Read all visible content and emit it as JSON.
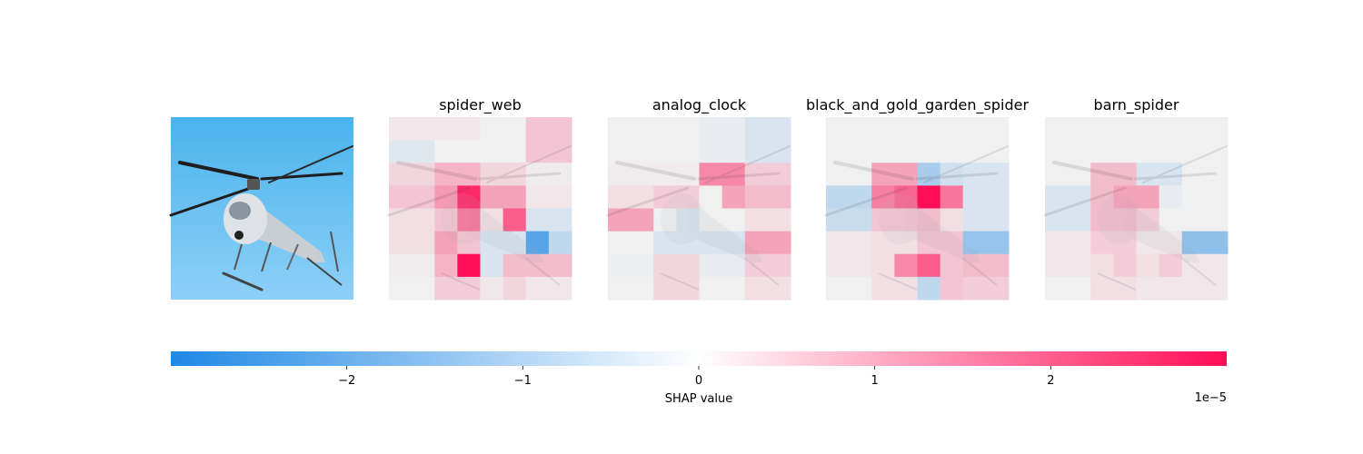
{
  "chart_data": {
    "type": "heatmap",
    "original_image": {
      "subject": "helicopter photo",
      "sky_colors": [
        "#4ab3ec",
        "#8dd0f7"
      ]
    },
    "grid": {
      "rows": 8,
      "cols": 8,
      "segment_labels_printed": false
    },
    "panels": [
      {
        "title": "spider_web",
        "values": [
          [
            0.1,
            0.1,
            0.1,
            0.1,
            0.0,
            0.0,
            0.5,
            0.5
          ],
          [
            -0.2,
            -0.2,
            0.0,
            0.0,
            0.0,
            0.0,
            0.5,
            0.5
          ],
          [
            0.3,
            0.3,
            0.7,
            0.7,
            0.3,
            0.3,
            0.05,
            0.05
          ],
          [
            0.5,
            0.5,
            1.0,
            2.3,
            0.9,
            0.9,
            0.1,
            0.1
          ],
          [
            0.2,
            0.2,
            0.5,
            1.4,
            0.2,
            1.7,
            -0.3,
            -0.3
          ],
          [
            0.2,
            0.2,
            0.9,
            0.5,
            -0.3,
            -0.3,
            -1.9,
            -0.6
          ],
          [
            0.05,
            0.05,
            0.7,
            2.6,
            -0.3,
            0.6,
            0.6,
            0.6
          ],
          [
            0.0,
            0.0,
            0.4,
            0.4,
            0.1,
            0.3,
            0.1,
            0.1
          ]
        ]
      },
      {
        "title": "analog_clock",
        "values": [
          [
            0.0,
            0.0,
            0.0,
            0.0,
            -0.1,
            -0.1,
            -0.3,
            -0.3
          ],
          [
            0.0,
            0.0,
            0.0,
            0.0,
            -0.1,
            -0.1,
            -0.3,
            -0.3
          ],
          [
            0.05,
            0.05,
            0.05,
            0.05,
            1.2,
            1.2,
            0.4,
            0.4
          ],
          [
            0.2,
            0.2,
            0.4,
            0.4,
            0.0,
            0.9,
            0.6,
            0.6
          ],
          [
            0.9,
            0.9,
            0.0,
            -0.3,
            0.0,
            0.0,
            0.2,
            0.2
          ],
          [
            0.0,
            0.0,
            -0.3,
            -0.3,
            -0.3,
            -0.3,
            0.9,
            0.9
          ],
          [
            -0.05,
            -0.05,
            0.3,
            0.3,
            -0.1,
            -0.1,
            0.4,
            0.4
          ],
          [
            0.0,
            0.0,
            0.3,
            0.3,
            0.0,
            0.0,
            0.2,
            0.2
          ]
        ]
      },
      {
        "title": "black_and_gold_garden_spider",
        "values": [
          [
            0.0,
            0.0,
            0.0,
            0.0,
            0.0,
            0.0,
            0.0,
            0.0
          ],
          [
            0.0,
            0.0,
            0.0,
            0.0,
            0.0,
            0.0,
            0.0,
            0.0
          ],
          [
            0.0,
            0.0,
            0.9,
            0.9,
            -0.9,
            -0.4,
            -0.3,
            -0.3
          ],
          [
            -0.6,
            -0.6,
            1.3,
            1.6,
            2.9,
            1.4,
            -0.3,
            -0.3
          ],
          [
            -0.5,
            -0.5,
            0.5,
            0.5,
            0.6,
            0.2,
            -0.3,
            -0.3
          ],
          [
            0.1,
            0.1,
            0.2,
            0.2,
            0.5,
            0.5,
            -1.1,
            -1.1
          ],
          [
            0.1,
            0.1,
            0.2,
            1.2,
            1.7,
            0.5,
            0.6,
            0.6
          ],
          [
            0.0,
            0.0,
            0.2,
            0.2,
            -0.6,
            0.5,
            0.4,
            0.4
          ]
        ]
      },
      {
        "title": "barn_spider",
        "values": [
          [
            0.0,
            0.0,
            0.0,
            0.0,
            0.0,
            0.0,
            0.0,
            0.0
          ],
          [
            0.0,
            0.0,
            0.0,
            0.0,
            0.0,
            0.0,
            0.0,
            0.0
          ],
          [
            0.0,
            0.0,
            0.6,
            0.6,
            -0.3,
            -0.3,
            0.0,
            0.0
          ],
          [
            -0.3,
            -0.3,
            0.6,
            0.9,
            0.9,
            -0.1,
            0.0,
            0.0
          ],
          [
            -0.3,
            -0.3,
            0.6,
            0.6,
            0.4,
            0.0,
            0.0,
            0.0
          ],
          [
            0.1,
            0.1,
            0.4,
            0.4,
            0.1,
            0.1,
            -1.2,
            -1.2
          ],
          [
            0.1,
            0.1,
            0.2,
            0.4,
            0.2,
            0.4,
            0.1,
            0.1
          ],
          [
            0.0,
            0.0,
            0.2,
            0.2,
            0.1,
            0.1,
            0.1,
            0.1
          ]
        ]
      }
    ],
    "colorbar": {
      "label": "SHAP value",
      "multiplier": "1e−5",
      "range": [
        -3,
        3
      ],
      "ticks": [
        -2,
        -1,
        0,
        1,
        2
      ],
      "tick_labels": [
        "−2",
        "−1",
        "0",
        "1",
        "2"
      ],
      "colors": {
        "negative": "#1e88e5",
        "neutral": "#ffffff",
        "positive": "#ff0d57",
        "zero_cell": "#f0f0f0"
      }
    }
  }
}
